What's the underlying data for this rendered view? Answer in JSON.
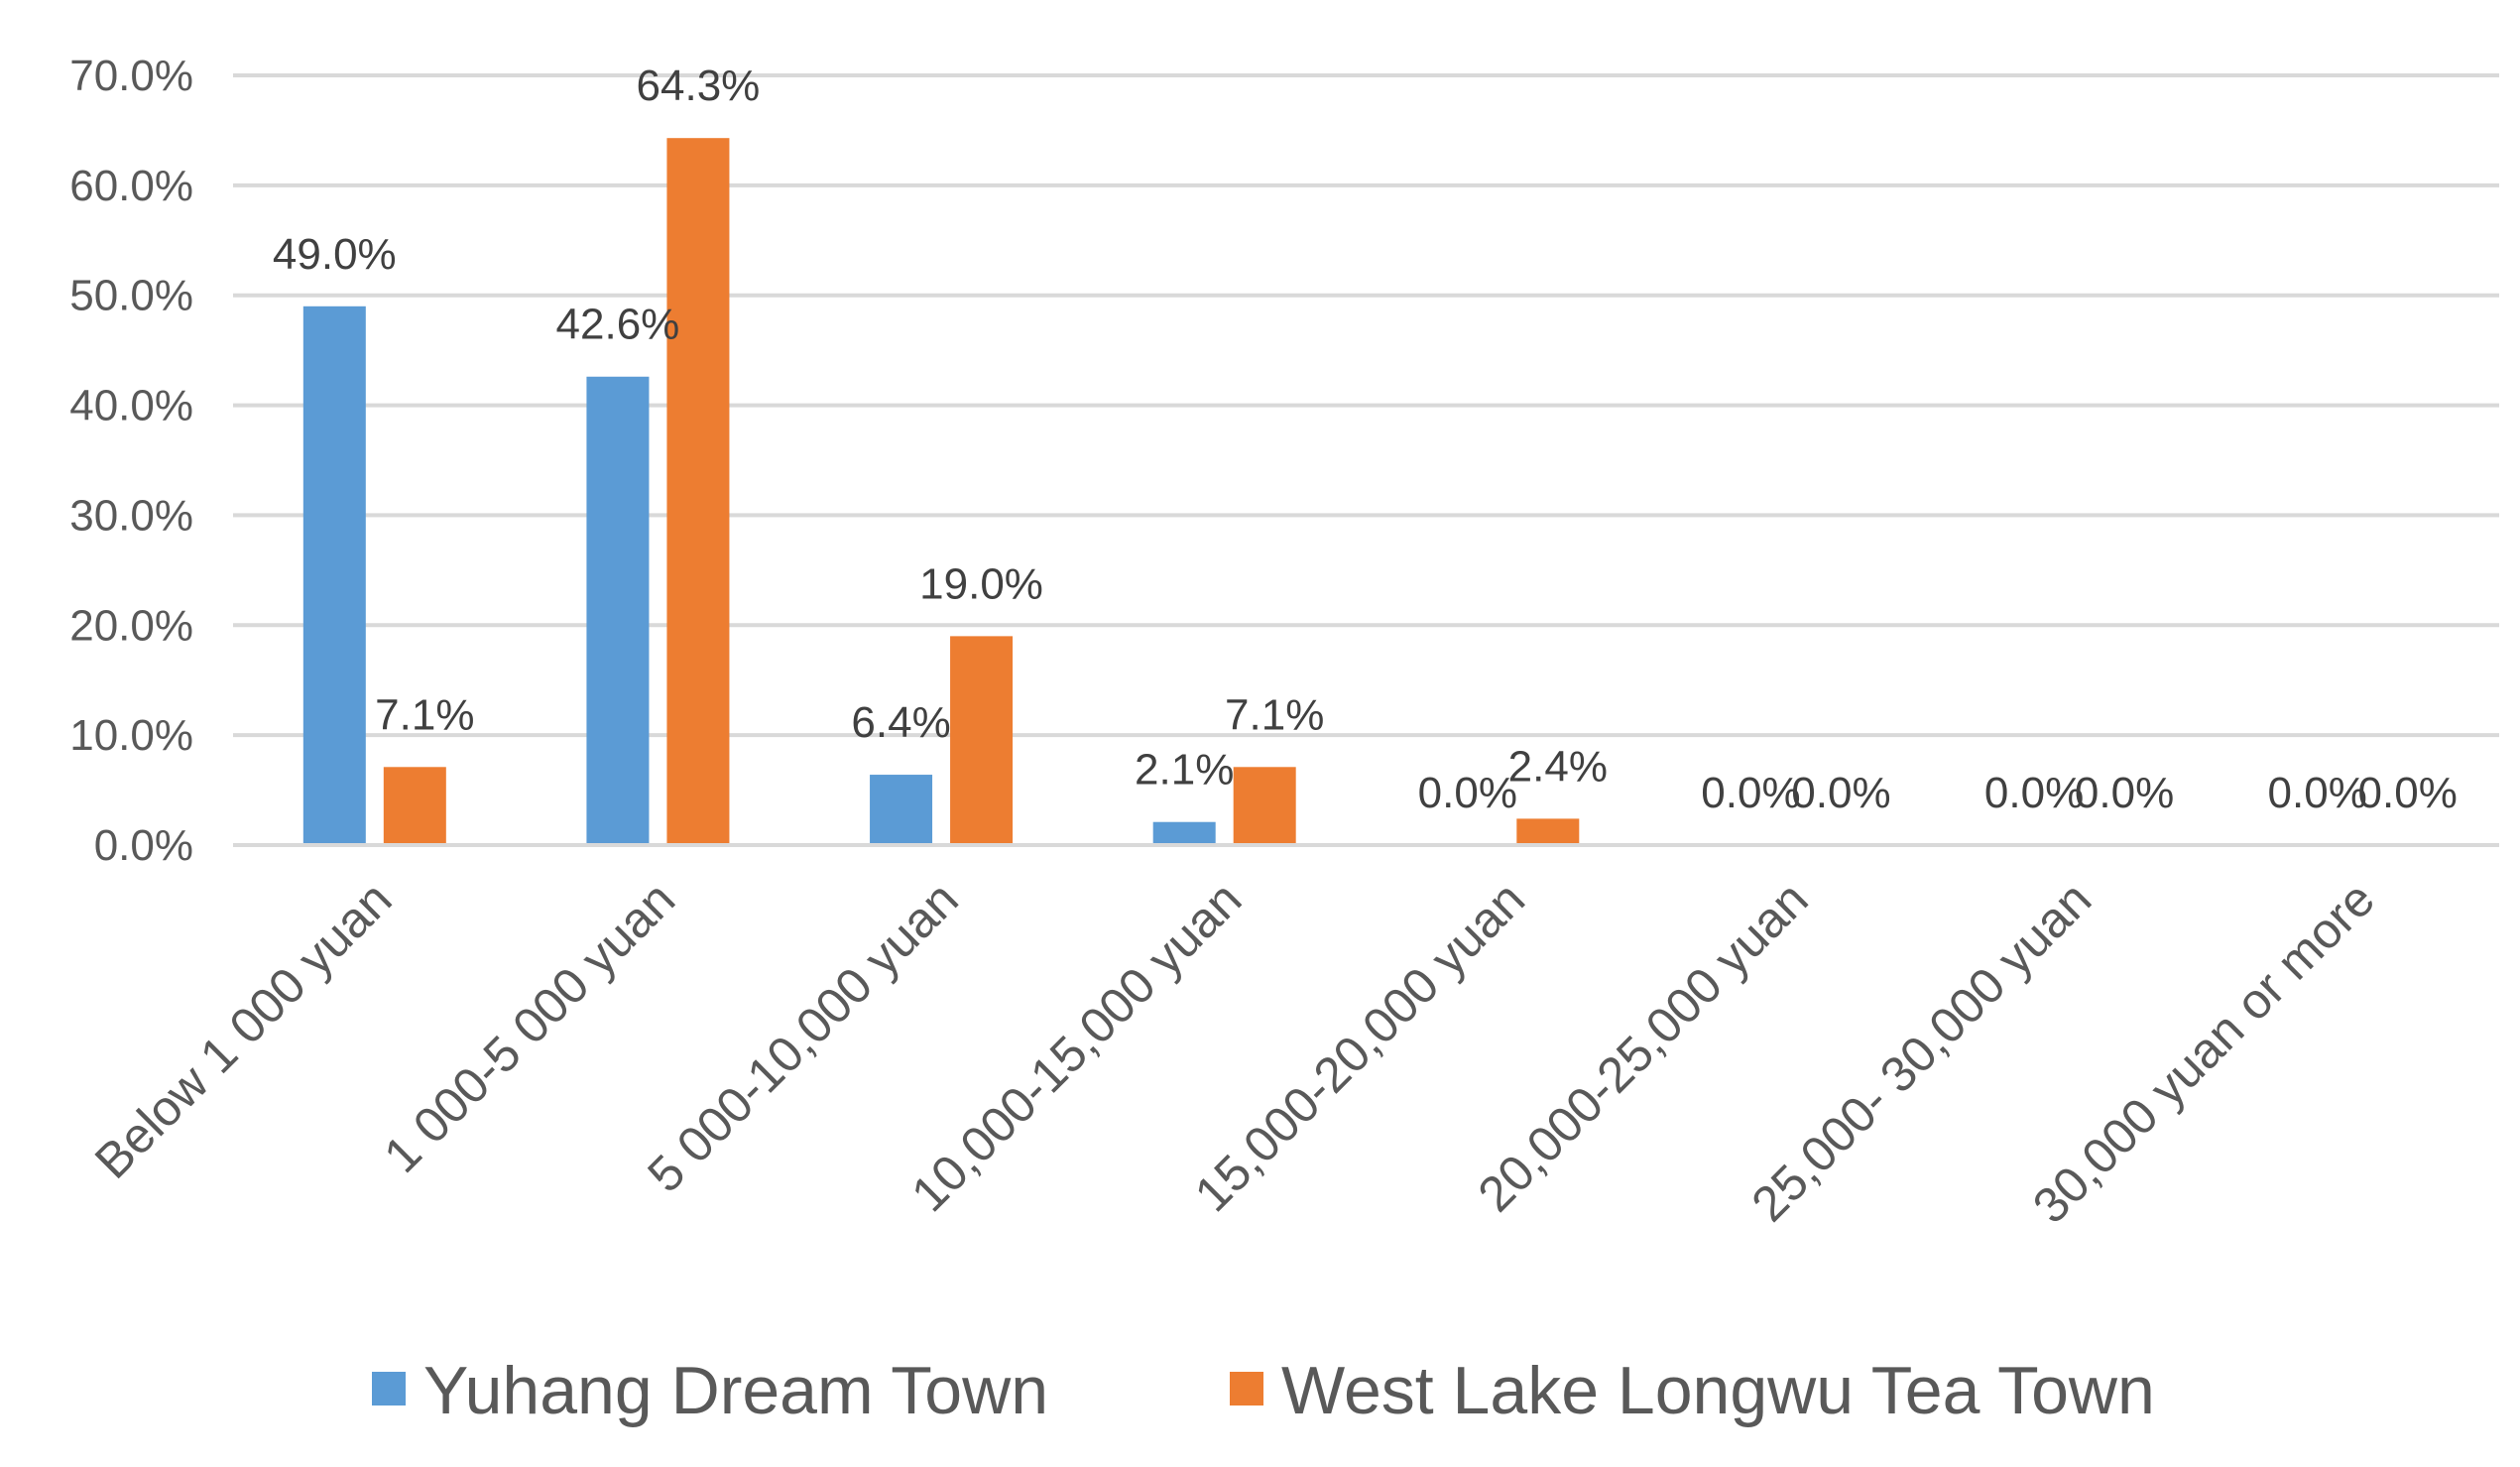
{
  "chart_data": {
    "type": "bar",
    "title": "",
    "xlabel": "",
    "ylabel": "",
    "ylim": [
      0,
      70
    ],
    "y_ticks": [
      "0.0%",
      "10.0%",
      "20.0%",
      "30.0%",
      "40.0%",
      "50.0%",
      "60.0%",
      "70.0%"
    ],
    "y_tick_values": [
      0,
      10,
      20,
      30,
      40,
      50,
      60,
      70
    ],
    "grid": true,
    "legend_position": "bottom",
    "categories": [
      "Below 1 000 yuan",
      "1 000-5 000 yuan",
      "5 000-10,000 yuan",
      "10,000-15,000 yuan",
      "15,000-20,000 yuan",
      "20,000-25,000 yuan",
      "25,000- 30,000 yuan",
      "30,000 yuan or more"
    ],
    "series": [
      {
        "name": "Yuhang Dream Town",
        "color": "#5b9bd5",
        "values": [
          49.0,
          42.6,
          6.4,
          2.1,
          0.0,
          0.0,
          0.0,
          0.0
        ],
        "labels": [
          "49.0%",
          "42.6%",
          "6.4%",
          "2.1%",
          "0.0%",
          "0.0%",
          "0.0%",
          "0.0%"
        ]
      },
      {
        "name": "West Lake Longwu Tea Town",
        "color": "#ed7d31",
        "values": [
          7.1,
          64.3,
          19.0,
          7.1,
          2.4,
          0.0,
          0.0,
          0.0
        ],
        "labels": [
          "7.1%",
          "64.3%",
          "19.0%",
          "7.1%",
          "2.4%",
          "0.0%",
          "0.0%",
          "0.0%"
        ]
      }
    ]
  }
}
